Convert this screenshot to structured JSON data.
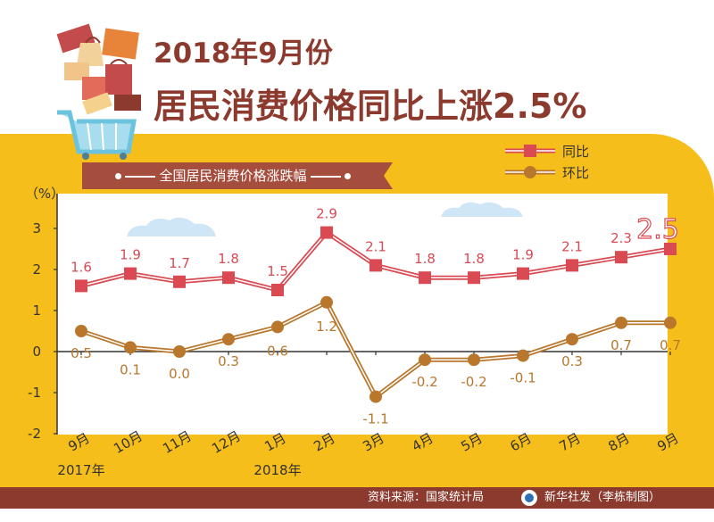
{
  "title": {
    "line1": "2018年9月份",
    "line2": "居民消费价格同比上涨2.5%"
  },
  "banner": {
    "text": "全国居民消费价格涨跌幅"
  },
  "footer": {
    "source": "资料来源：国家统计局",
    "credit": "新华社发（李栋制图）"
  },
  "colors": {
    "yoy": "#DA4A53",
    "mom": "#B8772C",
    "brand": "#8C3A2E",
    "background": "#F6BE1A"
  },
  "chart_data": {
    "type": "line",
    "ylabel": "（%）",
    "ylim": [
      -2,
      3
    ],
    "yticks": [
      "3",
      "2",
      "1",
      "0",
      "-1",
      "-2"
    ],
    "categories": [
      "9月",
      "10月",
      "11月",
      "12月",
      "1月",
      "2月",
      "3月",
      "4月",
      "5月",
      "6月",
      "7月",
      "8月",
      "9月"
    ],
    "year_labels": [
      {
        "category": "9月",
        "text": "2017年"
      },
      {
        "category": "1月",
        "text": "2018年"
      }
    ],
    "legend_position": "top-right",
    "grid": false,
    "series": [
      {
        "name": "同比",
        "marker": "square",
        "values": [
          1.6,
          1.9,
          1.7,
          1.8,
          1.5,
          2.9,
          2.1,
          1.8,
          1.8,
          1.9,
          2.1,
          2.3,
          2.5
        ],
        "labels": [
          "1.6",
          "1.9",
          "1.7",
          "1.8",
          "1.5",
          "2.9",
          "2.1",
          "1.8",
          "1.8",
          "1.9",
          "2.1",
          "2.3",
          "2.5"
        ]
      },
      {
        "name": "环比",
        "marker": "circle",
        "values": [
          0.5,
          0.1,
          0.0,
          0.3,
          0.6,
          1.2,
          -1.1,
          -0.2,
          -0.2,
          -0.1,
          0.3,
          0.7,
          0.7
        ],
        "labels": [
          "0.5",
          "0.1",
          "0.0",
          "0.3",
          "0.6",
          "1.2",
          "-1.1",
          "-0.2",
          "-0.2",
          "-0.1",
          "0.3",
          "0.7",
          "0.7"
        ]
      }
    ]
  }
}
